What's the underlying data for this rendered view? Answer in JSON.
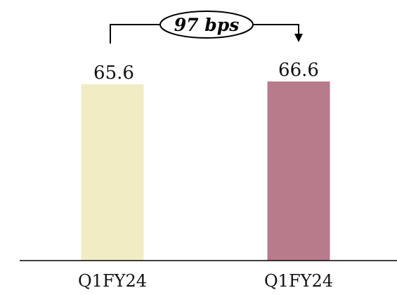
{
  "chart_data": {
    "type": "bar",
    "categories": [
      "Q1FY24",
      "Q1FY24"
    ],
    "values": [
      65.6,
      66.6
    ],
    "value_labels": [
      "65.6",
      "66.6"
    ],
    "colors": [
      "#f2ecc4",
      "#b87b8c"
    ],
    "annotation": "97 bps",
    "ylim": [
      0,
      68
    ],
    "grid": false,
    "legend": "none"
  }
}
